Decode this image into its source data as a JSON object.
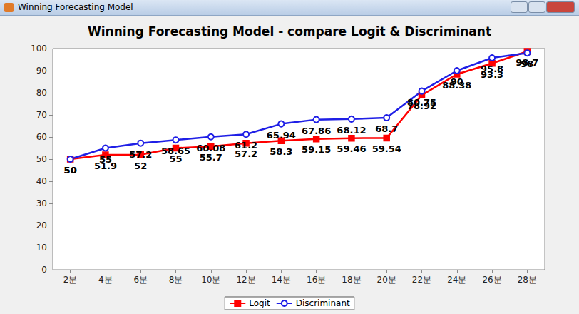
{
  "window_title": "Winning Forecasting Model",
  "chart_data": {
    "type": "line",
    "title": "Winning Forecasting Model - compare Logit & Discriminant",
    "categories": [
      "2분",
      "4분",
      "6분",
      "8분",
      "10분",
      "12분",
      "14분",
      "16분",
      "18분",
      "20분",
      "22분",
      "24분",
      "26분",
      "28분"
    ],
    "series": [
      {
        "name": "Logit",
        "color": "#ff0000",
        "marker": "square",
        "values": [
          50,
          51.9,
          52,
          55,
          55.7,
          57.2,
          58.3,
          59.15,
          59.46,
          59.54,
          78.92,
          88.38,
          93.3,
          98.7
        ]
      },
      {
        "name": "Discriminant",
        "color": "#1f1fe6",
        "marker": "open_circle",
        "values": [
          50,
          55,
          57.2,
          58.65,
          60.08,
          61.2,
          65.94,
          67.86,
          68.12,
          68.7,
          80.75,
          90,
          95.8,
          98
        ]
      }
    ],
    "ylim": [
      0,
      100
    ],
    "yticks": [
      0,
      10,
      20,
      30,
      40,
      50,
      60,
      70,
      80,
      90,
      100
    ],
    "grid": false,
    "legend": "bottom",
    "data_labels": true
  }
}
